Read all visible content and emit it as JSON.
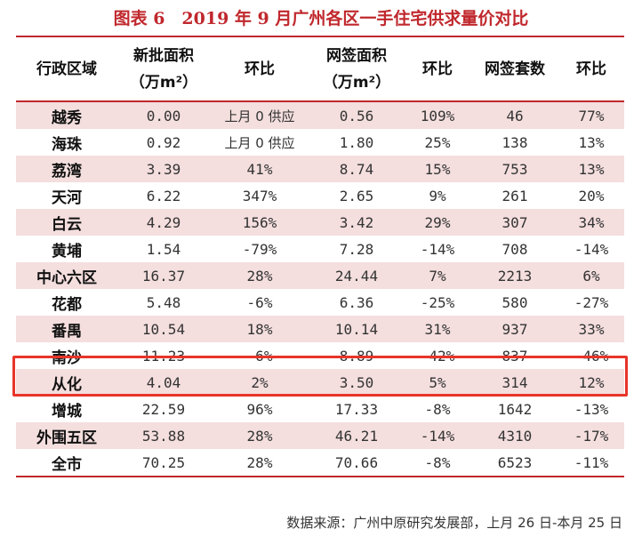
{
  "title": "图表 6　2019 年 9 月广州各区一手住宅供求量价对比",
  "headers": {
    "district": "行政区域",
    "new_area_line1": "新批面积",
    "new_area_line2": "（万m²）",
    "new_area_change": "环比",
    "signed_area_line1": "网签面积",
    "signed_area_line2": "（万m²）",
    "signed_area_change": "环比",
    "signed_units": "网签套数",
    "signed_units_change": "环比"
  },
  "rows": [
    {
      "district": "越秀",
      "new_area": "0.00",
      "new_change": "上月 0 供应",
      "signed_area": "0.56",
      "signed_change": "109%",
      "units": "46",
      "units_change": "77%"
    },
    {
      "district": "海珠",
      "new_area": "0.92",
      "new_change": "上月 0 供应",
      "signed_area": "1.80",
      "signed_change": "25%",
      "units": "138",
      "units_change": "13%"
    },
    {
      "district": "荔湾",
      "new_area": "3.39",
      "new_change": "41%",
      "signed_area": "8.74",
      "signed_change": "15%",
      "units": "753",
      "units_change": "13%"
    },
    {
      "district": "天河",
      "new_area": "6.22",
      "new_change": "347%",
      "signed_area": "2.65",
      "signed_change": "9%",
      "units": "261",
      "units_change": "20%"
    },
    {
      "district": "白云",
      "new_area": "4.29",
      "new_change": "156%",
      "signed_area": "3.42",
      "signed_change": "29%",
      "units": "307",
      "units_change": "34%"
    },
    {
      "district": "黄埔",
      "new_area": "1.54",
      "new_change": "-79%",
      "signed_area": "7.28",
      "signed_change": "-14%",
      "units": "708",
      "units_change": "-14%"
    },
    {
      "district": "中心六区",
      "new_area": "16.37",
      "new_change": "28%",
      "signed_area": "24.44",
      "signed_change": "7%",
      "units": "2213",
      "units_change": "6%"
    },
    {
      "district": "花都",
      "new_area": "5.48",
      "new_change": "-6%",
      "signed_area": "6.36",
      "signed_change": "-25%",
      "units": "580",
      "units_change": "-27%"
    },
    {
      "district": "番禺",
      "new_area": "10.54",
      "new_change": "18%",
      "signed_area": "10.14",
      "signed_change": "31%",
      "units": "937",
      "units_change": "33%"
    },
    {
      "district": "南沙",
      "new_area": "11.23",
      "new_change": "-6%",
      "signed_area": "8.89",
      "signed_change": "-42%",
      "units": "837",
      "units_change": "-46%"
    },
    {
      "district": "从化",
      "new_area": "4.04",
      "new_change": "2%",
      "signed_area": "3.50",
      "signed_change": "5%",
      "units": "314",
      "units_change": "12%"
    },
    {
      "district": "增城",
      "new_area": "22.59",
      "new_change": "96%",
      "signed_area": "17.33",
      "signed_change": "-8%",
      "units": "1642",
      "units_change": "-13%"
    },
    {
      "district": "外围五区",
      "new_area": "53.88",
      "new_change": "28%",
      "signed_area": "46.21",
      "signed_change": "-14%",
      "units": "4310",
      "units_change": "-17%"
    },
    {
      "district": "全市",
      "new_area": "70.25",
      "new_change": "28%",
      "signed_area": "70.66",
      "signed_change": "-8%",
      "units": "6523",
      "units_change": "-11%"
    }
  ],
  "source": "数据来源：广州中原研究发展部，上月 26 日-本月 25 日",
  "colors": {
    "accent": "#c0282d",
    "row_shade": "#f4dede",
    "highlight_box": "#e8342a"
  }
}
